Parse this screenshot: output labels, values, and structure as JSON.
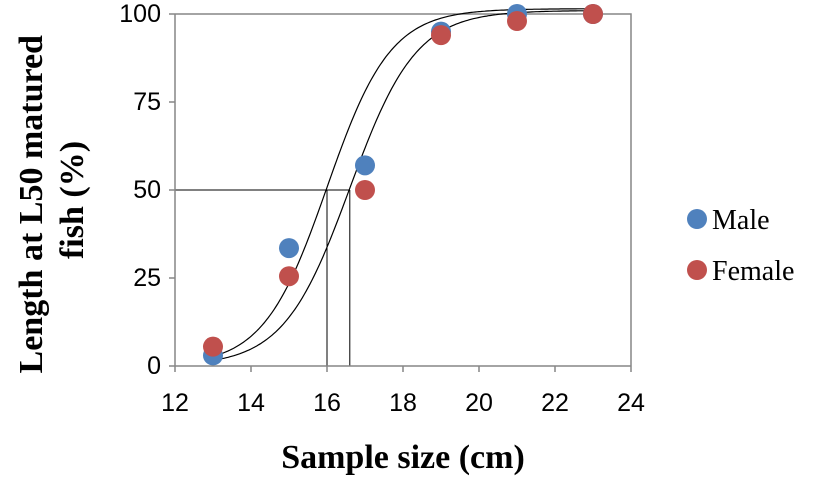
{
  "chart_data": {
    "type": "scatter",
    "title": "",
    "xlabel": "Sample size (cm)",
    "ylabel_lines": [
      "Length at L50  matured",
      "fish (%)"
    ],
    "xlim": [
      12,
      24
    ],
    "ylim": [
      0,
      100
    ],
    "xticks": [
      12,
      14,
      16,
      18,
      20,
      22,
      24
    ],
    "yticks": [
      0,
      25,
      50,
      75,
      100
    ],
    "grid": false,
    "legend_position": "right",
    "series": [
      {
        "name": "Male",
        "color": "#4F81BD",
        "x": [
          13,
          15,
          17,
          19,
          21,
          23
        ],
        "y": [
          3,
          33.5,
          57,
          95,
          100,
          100
        ]
      },
      {
        "name": "Female",
        "color": "#C0504D",
        "x": [
          13,
          15,
          17,
          19,
          21,
          23
        ],
        "y": [
          5.5,
          25.5,
          50,
          94,
          98,
          100
        ]
      }
    ],
    "fitted_curves": [
      {
        "model": "logistic",
        "l50": 16.0,
        "slope": 1.2,
        "asymptote": 101.5
      },
      {
        "model": "logistic",
        "l50": 16.6,
        "slope": 1.15,
        "asymptote": 101
      }
    ],
    "l50_markers": {
      "y": 50,
      "x_values": [
        16.0,
        16.6
      ]
    }
  }
}
